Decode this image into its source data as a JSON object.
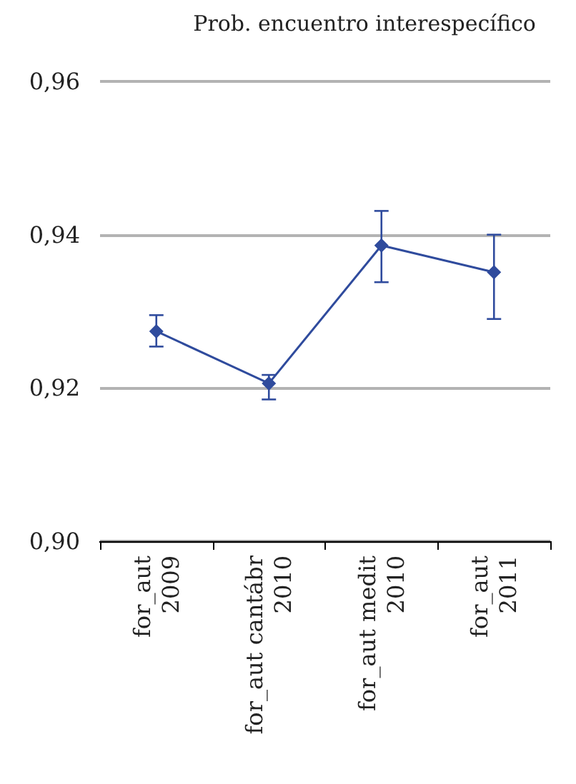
{
  "chart_data": {
    "type": "line",
    "title": "Prob. encuentro interespecífico",
    "categories": [
      "for_aut 2009",
      "for_aut cantábr 2010",
      "for_aut medit 2010",
      "for_aut 2011"
    ],
    "series": [
      {
        "color": "#2f4b9d",
        "values": [
          0.9274,
          0.9206,
          0.9386,
          0.9351
        ],
        "errors": [
          [
            0.9254,
            0.9295
          ],
          [
            0.9185,
            0.9217
          ],
          [
            0.9338,
            0.9431
          ],
          [
            0.929,
            0.94
          ]
        ]
      }
    ],
    "ylim": [
      0.9,
      0.96
    ],
    "yticks": [
      {
        "value": 0.9,
        "label": "0,90"
      },
      {
        "value": 0.92,
        "label": "0,92"
      },
      {
        "value": 0.94,
        "label": "0,94"
      },
      {
        "value": 0.96,
        "label": "0,96"
      }
    ],
    "grid": "y",
    "marker": "diamond",
    "line_style": "solid"
  }
}
